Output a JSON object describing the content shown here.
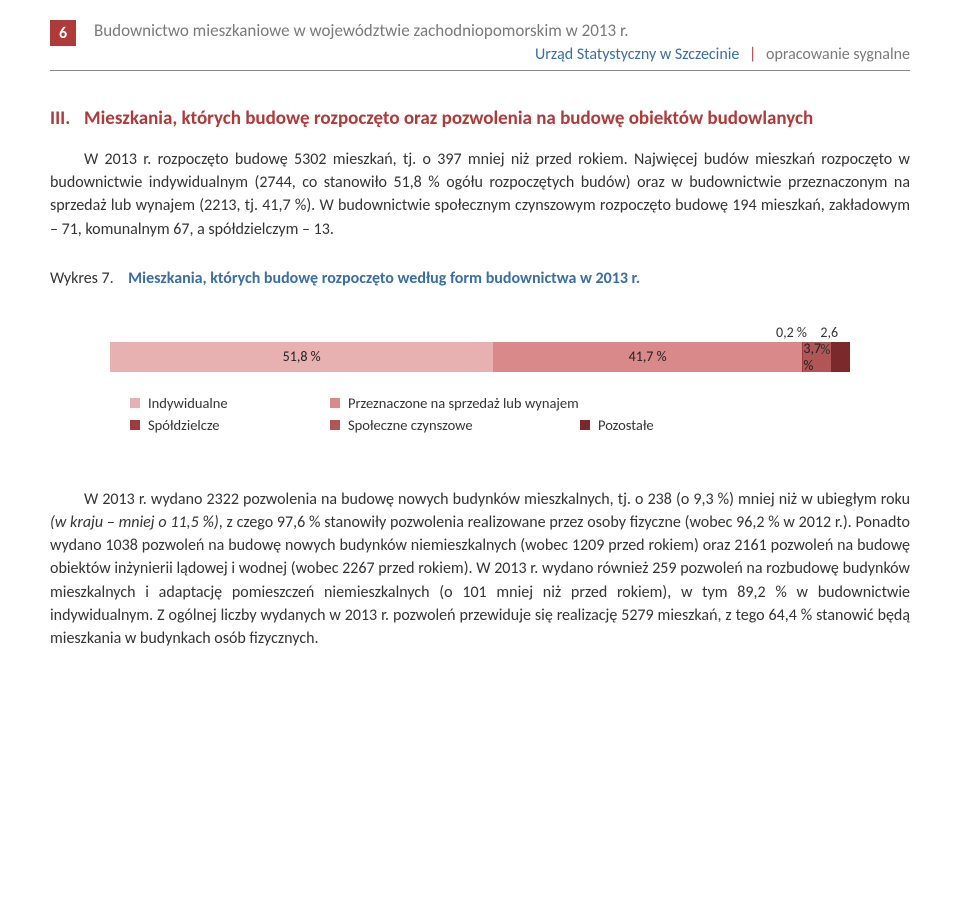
{
  "page_number": "6",
  "header": {
    "title": "Budownictwo mieszkaniowe w województwie zachodniopomorskim w 2013 r.",
    "office": "Urząd Statystyczny w Szczecinie",
    "signal": "opracowanie sygnalne"
  },
  "section": {
    "roman": "III.",
    "title": "Mieszkania, których budowę rozpoczęto oraz pozwolenia na budowę obiektów budowlanych"
  },
  "para1": "W 2013 r. rozpoczęto budowę 5302 mieszkań, tj. o 397 mniej niż przed rokiem. Najwięcej budów mieszkań rozpoczęto w budownictwie indywidualnym (2744, co stanowiło 51,8 % ogółu rozpoczętych budów) oraz w budownictwie przeznaczonym na sprzedaż lub wynajem (2213, tj. 41,7 %). W budownictwie społecznym czynszowym rozpoczęto budowę 194 mieszkań, zakładowym – 71, komunalnym 67, a spółdzielczym – 13.",
  "chart": {
    "label_prefix": "Wykres 7.",
    "caption": "Mieszkania, których budowę rozpoczęto według form budownictwa w 2013 r.",
    "segments": [
      {
        "label": "51,8 %",
        "value": 51.8,
        "color": "#e7b1b1"
      },
      {
        "label": "41,7 %",
        "value": 41.7,
        "color": "#d98989"
      },
      {
        "label": "",
        "value": 0.2,
        "color": "#9f3b3b"
      },
      {
        "label": "3,7 %",
        "value": 3.7,
        "color": "#b05656"
      },
      {
        "label": "",
        "value": 2.6,
        "color": "#7a2a2a"
      }
    ],
    "top_labels": [
      {
        "text": "0,2 %",
        "left_pct": 90
      },
      {
        "text": "2,6 %",
        "left_pct": 96
      }
    ],
    "legend": [
      {
        "label": "Indywidualne",
        "color": "#e7b1b1"
      },
      {
        "label": "Przeznaczone na sprzedaż lub wynajem",
        "color": "#d98989"
      },
      {
        "label": "Spółdzielcze",
        "color": "#9f3b3b"
      },
      {
        "label": "Społeczne czynszowe",
        "color": "#b05656"
      },
      {
        "label": "Pozostałe",
        "color": "#7a2a2a"
      }
    ]
  },
  "para2_a": "W 2013 r. wydano 2322 pozwolenia na budowę nowych budynków mieszkalnych, tj. o 238 (o 9,3 %) mniej niż w ubiegłym roku ",
  "para2_italic": "(w kraju – mniej o 11,5 %)",
  "para2_b": ", z czego 97,6 % stanowiły pozwolenia realizowane przez osoby fizyczne (wobec 96,2 % w 2012 r.). Ponadto wydano 1038 pozwoleń na budowę nowych budynków niemieszkalnych (wobec 1209 przed rokiem) oraz 2161 pozwoleń na budowę obiektów inżynierii lądowej i wodnej (wobec 2267 przed rokiem). W 2013 r. wydano również 259 pozwoleń na rozbudowę budynków mieszkalnych i adaptację pomieszczeń niemieszkalnych (o 101 mniej niż przed rokiem), w tym 89,2 % w budownictwie indywidualnym. Z ogólnej liczby wydanych w 2013 r. pozwoleń przewiduje się realizację 5279 mieszkań, z tego 64,4 % stanowić będą mieszkania w budynkach osób fizycznych."
}
